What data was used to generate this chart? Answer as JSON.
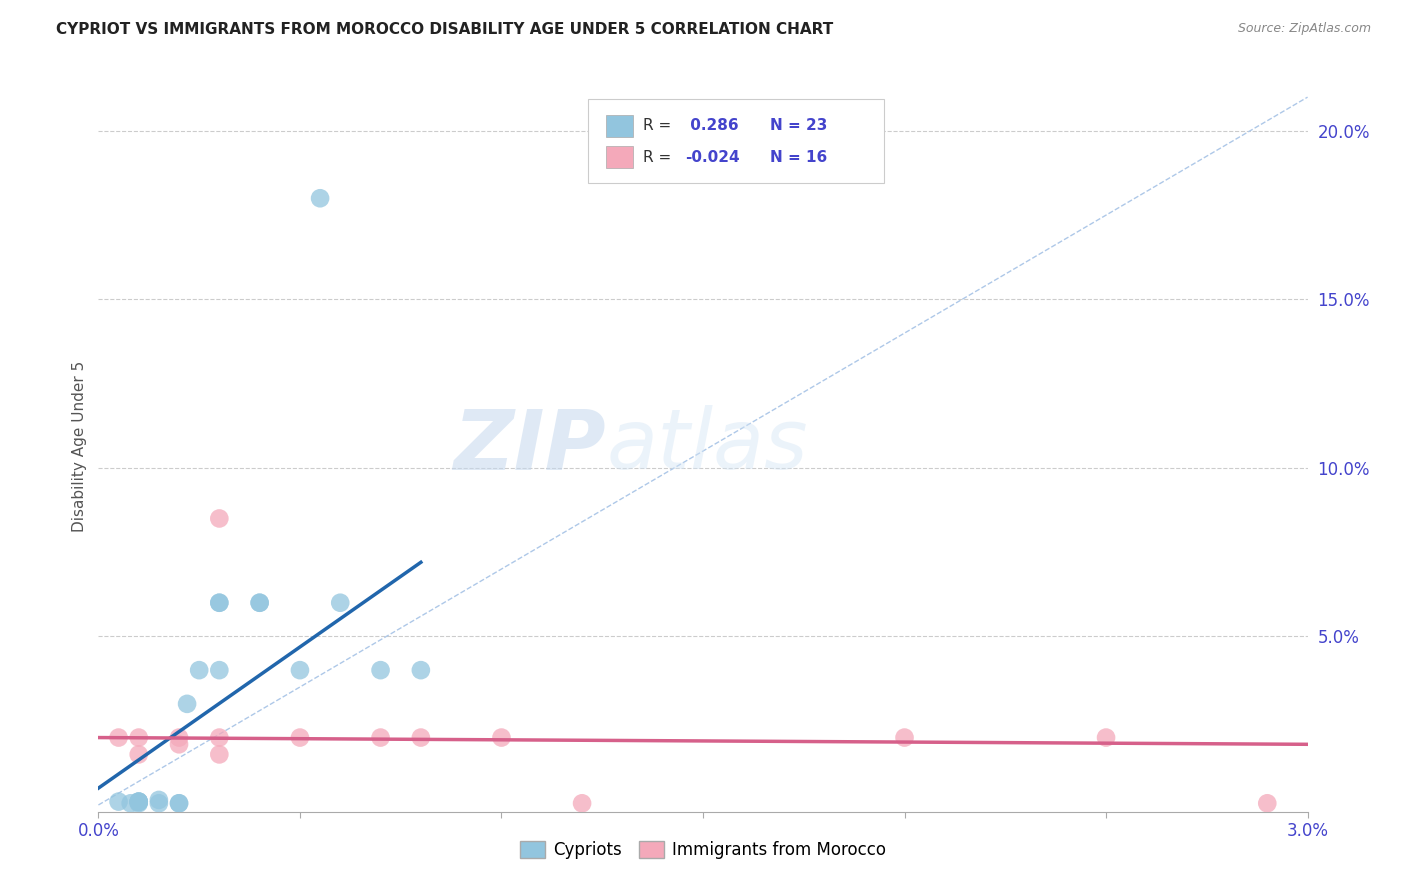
{
  "title": "CYPRIOT VS IMMIGRANTS FROM MOROCCO DISABILITY AGE UNDER 5 CORRELATION CHART",
  "source": "Source: ZipAtlas.com",
  "ylabel": "Disability Age Under 5",
  "watermark_zip": "ZIP",
  "watermark_atlas": "atlas",
  "xlim": [
    0.0,
    0.03
  ],
  "ylim": [
    -0.002,
    0.215
  ],
  "xticks": [
    0.0,
    0.005,
    0.01,
    0.015,
    0.02,
    0.025,
    0.03
  ],
  "xticklabels": [
    "0.0%",
    "",
    "",
    "",
    "",
    "",
    "3.0%"
  ],
  "yticks_right": [
    0.05,
    0.1,
    0.15,
    0.2
  ],
  "yticklabels_right": [
    "5.0%",
    "10.0%",
    "15.0%",
    "20.0%"
  ],
  "blue_r": "0.286",
  "blue_n": "23",
  "pink_r": "-0.024",
  "pink_n": "16",
  "blue_color": "#92c5de",
  "pink_color": "#f4a9ba",
  "blue_line_color": "#2166ac",
  "pink_line_color": "#d6608a",
  "ref_line_color": "#aec8e8",
  "legend_label_blue": "Cypriots",
  "legend_label_pink": "Immigrants from Morocco",
  "blue_dots": [
    [
      0.0005,
      0.001
    ],
    [
      0.001,
      0.001
    ],
    [
      0.001,
      0.001
    ],
    [
      0.001,
      0.001
    ],
    [
      0.0008,
      0.0005
    ],
    [
      0.001,
      0.0008
    ],
    [
      0.0015,
      0.0005
    ],
    [
      0.0015,
      0.0015
    ],
    [
      0.001,
      0.0005
    ],
    [
      0.002,
      0.0005
    ],
    [
      0.002,
      0.0005
    ],
    [
      0.0022,
      0.03
    ],
    [
      0.0025,
      0.04
    ],
    [
      0.003,
      0.06
    ],
    [
      0.003,
      0.06
    ],
    [
      0.003,
      0.04
    ],
    [
      0.004,
      0.06
    ],
    [
      0.004,
      0.06
    ],
    [
      0.005,
      0.04
    ],
    [
      0.0055,
      0.18
    ],
    [
      0.006,
      0.06
    ],
    [
      0.007,
      0.04
    ],
    [
      0.008,
      0.04
    ]
  ],
  "pink_dots": [
    [
      0.0005,
      0.02
    ],
    [
      0.001,
      0.02
    ],
    [
      0.001,
      0.015
    ],
    [
      0.002,
      0.02
    ],
    [
      0.002,
      0.018
    ],
    [
      0.003,
      0.02
    ],
    [
      0.003,
      0.015
    ],
    [
      0.003,
      0.085
    ],
    [
      0.005,
      0.02
    ],
    [
      0.007,
      0.02
    ],
    [
      0.008,
      0.02
    ],
    [
      0.01,
      0.02
    ],
    [
      0.012,
      0.0005
    ],
    [
      0.02,
      0.02
    ],
    [
      0.025,
      0.02
    ],
    [
      0.029,
      0.0005
    ]
  ],
  "blue_trend_x": [
    0.0,
    0.008
  ],
  "blue_trend_y": [
    0.005,
    0.072
  ],
  "pink_trend_x": [
    0.0,
    0.03
  ],
  "pink_trend_y": [
    0.02,
    0.018
  ],
  "ref_line_x": [
    0.0,
    0.03
  ],
  "ref_line_y": [
    0.0,
    0.21
  ],
  "grid_color": "#cccccc",
  "background_color": "#ffffff",
  "tick_color": "#4444cc",
  "label_color": "#555555"
}
